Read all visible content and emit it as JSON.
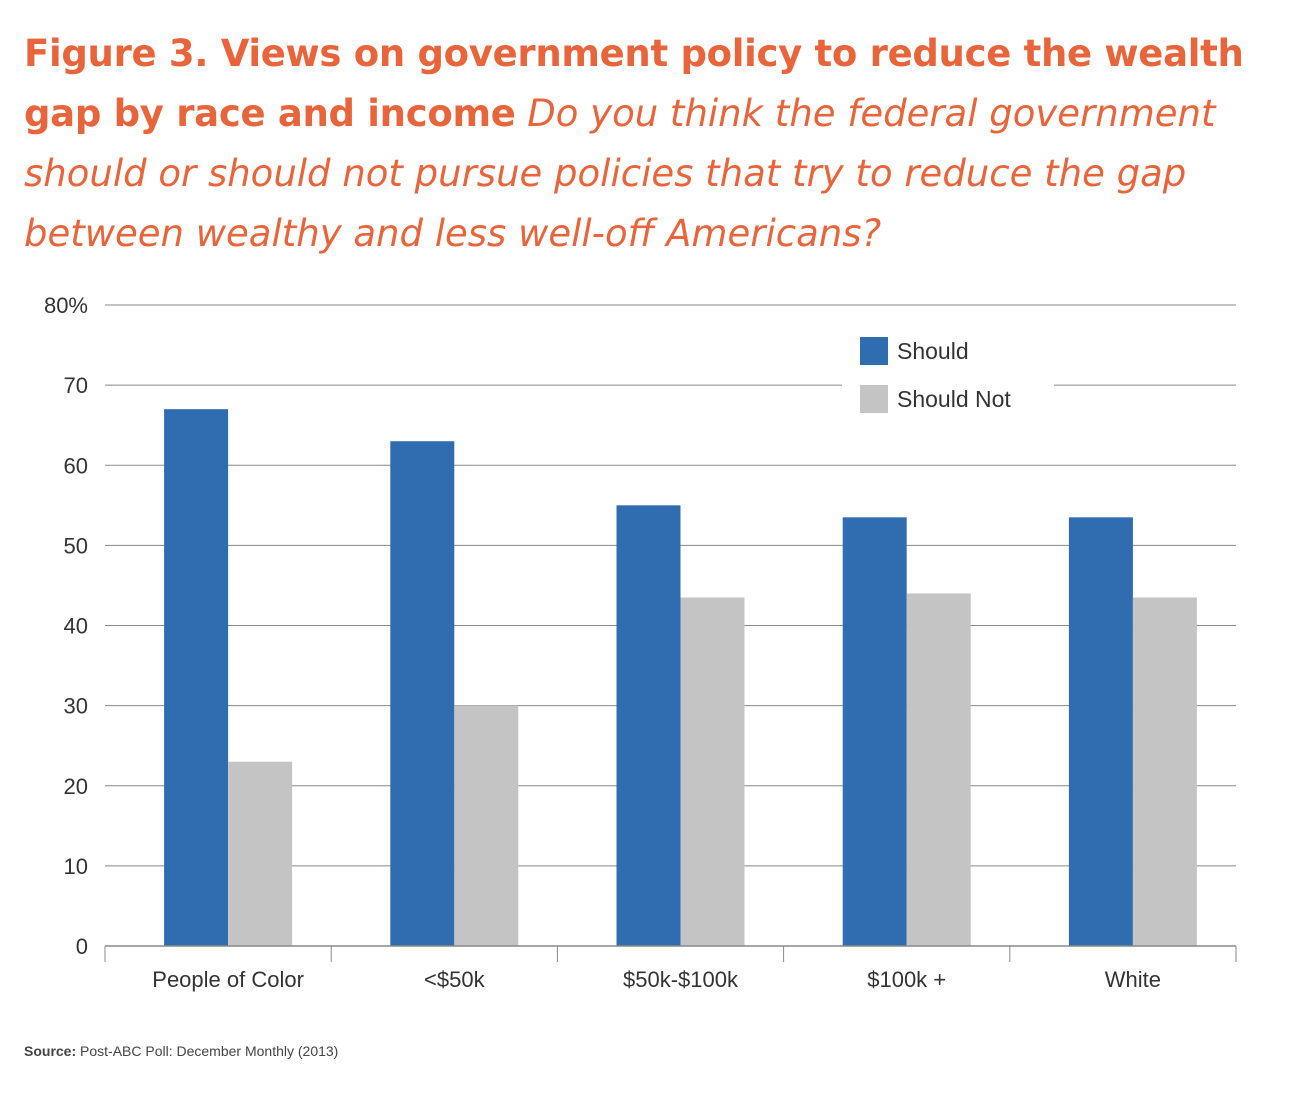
{
  "figure": {
    "title": "Figure 3. Views on government policy to reduce the wealth gap by race and income",
    "question": "Do you think the federal government should or should not pursue policies that try to reduce the gap between wealthy and less well-off Americans?"
  },
  "source": {
    "label": "Source:",
    "text": "Post-ABC Poll: December Monthly (2013)"
  },
  "colors": {
    "heading": "#E8643A",
    "should": "#2F6DB0",
    "should_not": "#C4C4C4",
    "grid": "#888888",
    "axis_text": "#333333"
  },
  "chart_data": {
    "type": "bar",
    "categories": [
      "People of Color",
      "<$50k",
      "$50k-$100k",
      "$100k +",
      "White"
    ],
    "series": [
      {
        "name": "Should",
        "values": [
          67,
          63,
          55,
          53.5,
          53.5
        ]
      },
      {
        "name": "Should Not",
        "values": [
          23,
          30,
          43.5,
          44,
          43.5
        ]
      }
    ],
    "y_ticks": [
      "0",
      "10",
      "20",
      "30",
      "40",
      "50",
      "60",
      "70",
      "80%"
    ],
    "ylim": [
      0,
      80
    ],
    "grid": true,
    "legend_position": "top-right",
    "xlabel": "",
    "ylabel": ""
  }
}
